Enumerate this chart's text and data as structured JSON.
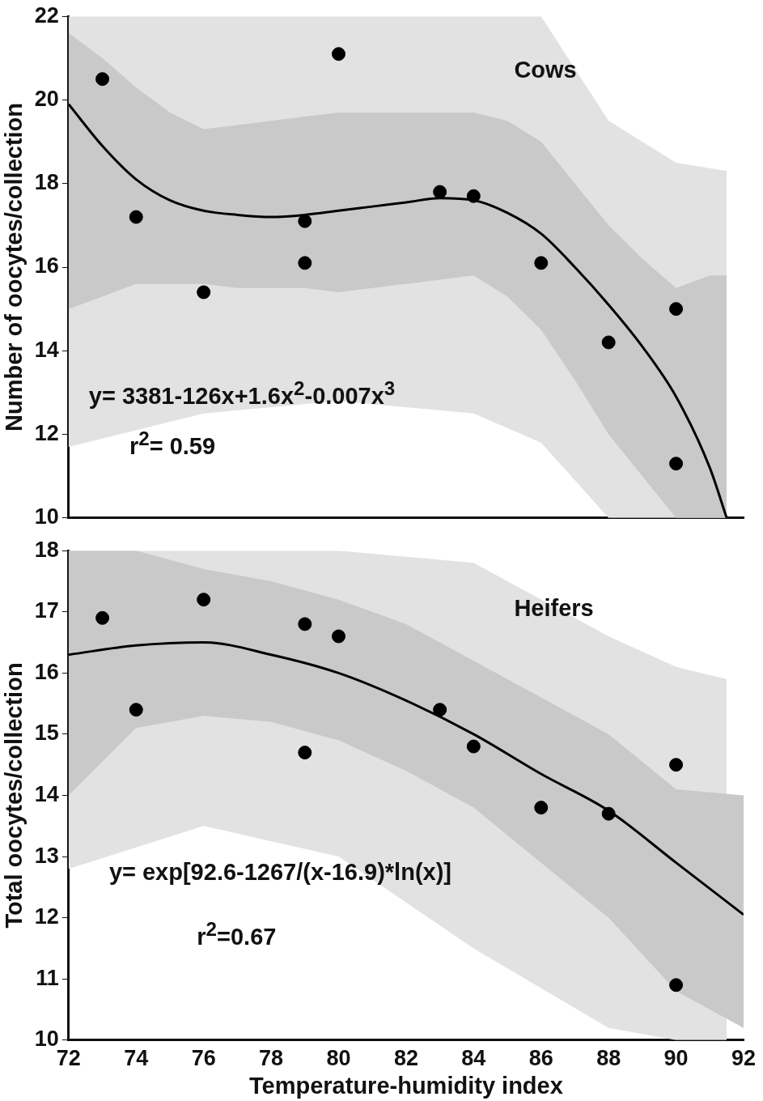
{
  "chart_data": [
    {
      "type": "scatter",
      "ylabel": "Number of oocytes/collection",
      "annotations": [
        "Cows",
        "y= 3381-126x+1.6x$^{2}$-0.007x$^{3}$",
        "r$^{2}$= 0.59"
      ],
      "xlim": [
        72,
        92
      ],
      "xticks": [
        72,
        74,
        76,
        78,
        80,
        82,
        84,
        86,
        88,
        90,
        92
      ],
      "ylim": [
        10,
        22
      ],
      "yticks": [
        10,
        12,
        14,
        16,
        18,
        20,
        22
      ],
      "tick_labels": "y",
      "grid": false,
      "legend": false,
      "series": [
        {
          "type": "line",
          "color": "#e2e2e2",
          "marker": "none",
          "x": [
            72,
            76,
            80,
            84,
            86,
            88,
            90,
            91.5
          ],
          "values": [
            null,
            null,
            null,
            null,
            null,
            null,
            null,
            null
          ],
          "lower": [
            11.7,
            12.5,
            12.8,
            12.5,
            11.8,
            10,
            10,
            10
          ],
          "upper": [
            22,
            22,
            22,
            22,
            22,
            19.5,
            18.5,
            18.3
          ]
        },
        {
          "type": "line",
          "color": "#c9c9c9",
          "marker": "none",
          "x": [
            72,
            73,
            74,
            75,
            76,
            77,
            78,
            79,
            80,
            81,
            82,
            83,
            84,
            85,
            86,
            87,
            88,
            89,
            90,
            91,
            91.5
          ],
          "values": [
            null,
            null,
            null,
            null,
            null,
            null,
            null,
            null,
            null,
            null,
            null,
            null,
            null,
            null,
            null,
            null,
            null,
            null,
            null,
            null,
            null
          ],
          "lower": [
            15,
            15.3,
            15.6,
            15.6,
            15.6,
            15.5,
            15.5,
            15.5,
            15.4,
            15.5,
            15.6,
            15.7,
            15.8,
            15.3,
            14.5,
            13.3,
            12,
            11,
            10,
            10,
            10
          ],
          "upper": [
            21.6,
            21,
            20.3,
            19.7,
            19.3,
            19.4,
            19.5,
            19.6,
            19.7,
            19.7,
            19.7,
            19.7,
            19.7,
            19.5,
            19,
            18,
            17,
            16.2,
            15.5,
            15.8,
            15.8
          ]
        },
        {
          "type": "line",
          "color": "#000000",
          "marker": "none",
          "x": [
            72,
            73,
            74,
            75,
            76,
            77,
            78,
            79,
            80,
            81,
            82,
            83,
            84,
            85,
            86,
            87,
            88,
            89,
            90,
            91,
            91.5
          ],
          "values": [
            19.9,
            18.9,
            18.1,
            17.6,
            17.35,
            17.25,
            17.2,
            17.25,
            17.35,
            17.45,
            17.55,
            17.65,
            17.6,
            17.3,
            16.8,
            16.0,
            15.1,
            14.1,
            12.9,
            11.2,
            10.0
          ]
        },
        {
          "type": "scatter",
          "color": "#000000",
          "marker": "circle",
          "x": [
            73,
            74,
            76,
            79,
            79,
            80,
            83,
            84,
            86,
            88,
            90,
            90
          ],
          "values": [
            20.5,
            17.2,
            15.4,
            17.1,
            16.1,
            21.1,
            17.8,
            17.7,
            16.1,
            14.2,
            15.0,
            11.3
          ]
        }
      ]
    },
    {
      "type": "scatter",
      "xlabel": "Temperature-humidity index",
      "ylabel": "Total oocytes/collection",
      "annotations": [
        "Heifers",
        "y= exp[92.6-1267/(x-16.9)*ln(x)]",
        "r$^{2}$=0.67"
      ],
      "xlim": [
        72,
        92
      ],
      "xticks": [
        72,
        74,
        76,
        78,
        80,
        82,
        84,
        86,
        88,
        90,
        92
      ],
      "ylim": [
        10,
        18
      ],
      "yticks": [
        10,
        11,
        12,
        13,
        14,
        15,
        16,
        17,
        18
      ],
      "grid": false,
      "legend": false,
      "series": [
        {
          "type": "line",
          "color": "#e2e2e2",
          "marker": "none",
          "x": [
            72,
            76,
            80,
            84,
            88,
            90,
            91.5
          ],
          "values": [
            null,
            null,
            null,
            null,
            null,
            null,
            null
          ],
          "lower": [
            12.8,
            13.5,
            13.0,
            11.5,
            10.2,
            10,
            10
          ],
          "upper": [
            18,
            18,
            18,
            17.8,
            16.6,
            16.1,
            15.9
          ]
        },
        {
          "type": "line",
          "color": "#c9c9c9",
          "marker": "none",
          "x": [
            72,
            74,
            76,
            78,
            80,
            82,
            84,
            86,
            88,
            90,
            92
          ],
          "values": [
            null,
            null,
            null,
            null,
            null,
            null,
            null,
            null,
            null,
            null,
            null
          ],
          "lower": [
            14,
            15.1,
            15.3,
            15.2,
            14.9,
            14.4,
            13.8,
            12.9,
            12,
            10.8,
            10.2
          ],
          "upper": [
            18,
            18,
            17.7,
            17.5,
            17.2,
            16.8,
            16.2,
            15.6,
            15,
            14.1,
            14
          ]
        },
        {
          "type": "line",
          "color": "#000000",
          "marker": "none",
          "x": [
            72,
            74,
            76,
            78,
            80,
            82,
            84,
            86,
            88,
            90,
            92
          ],
          "values": [
            16.3,
            16.45,
            16.5,
            16.3,
            16.0,
            15.55,
            15.0,
            14.35,
            13.75,
            12.9,
            12.05
          ]
        },
        {
          "type": "scatter",
          "color": "#000000",
          "marker": "circle",
          "x": [
            73,
            74,
            76,
            79,
            79,
            80,
            83,
            84,
            86,
            88,
            90,
            90
          ],
          "values": [
            16.9,
            15.4,
            17.2,
            16.8,
            14.7,
            16.6,
            15.4,
            14.8,
            13.8,
            13.7,
            14.5,
            10.9
          ]
        }
      ]
    }
  ]
}
